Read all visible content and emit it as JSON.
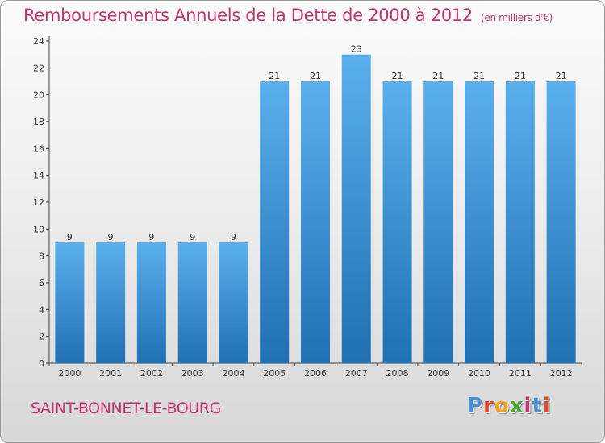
{
  "header": {
    "title": "Remboursements Annuels de la Dette de 2000 à 2012",
    "subtitle": "(en milliers d'€)"
  },
  "footer": {
    "commune": "SAINT-BONNET-LE-BOURG",
    "brand": "Proxiti",
    "brand_colors": [
      "#4a8fd0",
      "#e0462e",
      "#f0a020",
      "#4aa83a",
      "#c0336e",
      "#4a8fd0",
      "#e0462e"
    ]
  },
  "colors": {
    "accent": "#c0336e",
    "bar_top": "#5ab0ec",
    "bar_bottom": "#2070b4",
    "axis": "#444444"
  },
  "chart_data": {
    "type": "bar",
    "title": "Remboursements Annuels de la Dette de 2000 à 2012",
    "categories": [
      "2000",
      "2001",
      "2002",
      "2003",
      "2004",
      "2005",
      "2006",
      "2007",
      "2008",
      "2009",
      "2010",
      "2011",
      "2012"
    ],
    "values": [
      9,
      9,
      9,
      9,
      9,
      21,
      21,
      23,
      21,
      21,
      21,
      21,
      21
    ],
    "ylim": [
      0,
      24
    ],
    "yticks": [
      0,
      2,
      4,
      6,
      8,
      10,
      12,
      14,
      16,
      18,
      20,
      22,
      24
    ],
    "xlabel": "",
    "ylabel": "",
    "grid": false
  }
}
